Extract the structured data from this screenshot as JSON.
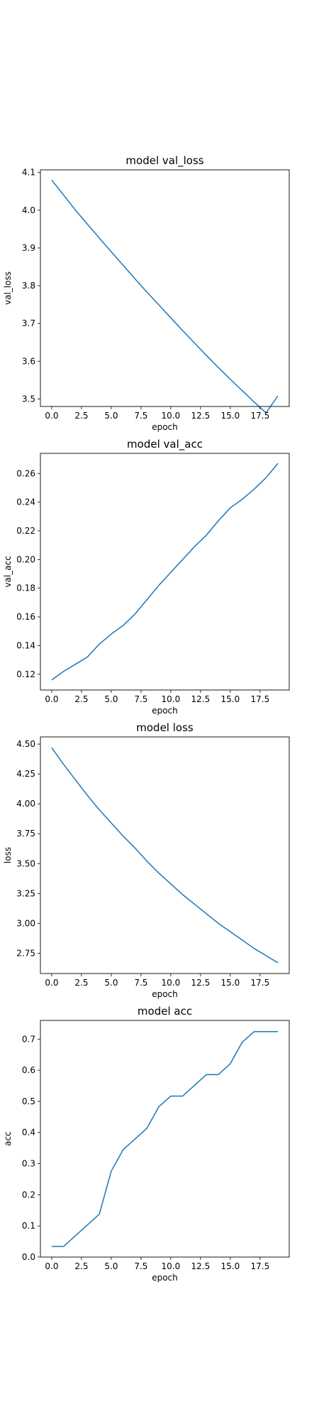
{
  "chart_data": [
    {
      "type": "line",
      "title": "model val_loss",
      "xlabel": "epoch",
      "ylabel": "val_loss",
      "xlim": [
        -0.95,
        19.95
      ],
      "ylim": [
        3.48,
        4.107
      ],
      "xticks": [
        0.0,
        2.5,
        5.0,
        7.5,
        10.0,
        12.5,
        15.0,
        17.5
      ],
      "xtick_labels": [
        "0.0",
        "2.5",
        "5.0",
        "7.5",
        "10.0",
        "12.5",
        "15.0",
        "17.5"
      ],
      "yticks": [
        3.5,
        3.6,
        3.7,
        3.8,
        3.9,
        4.0,
        4.1
      ],
      "ytick_labels": [
        "3.5",
        "3.6",
        "3.7",
        "3.8",
        "3.9",
        "4.0",
        "4.1"
      ],
      "color": "#1f77b4",
      "x": [
        0,
        1,
        2,
        3,
        4,
        5,
        6,
        7,
        8,
        9,
        10,
        11,
        12,
        13,
        14,
        15,
        16,
        17,
        18,
        19
      ],
      "values": [
        4.08,
        4.04,
        4.0,
        3.963,
        3.926,
        3.89,
        3.854,
        3.818,
        3.783,
        3.749,
        3.715,
        3.681,
        3.648,
        3.615,
        3.583,
        3.552,
        3.522,
        3.492,
        3.463,
        3.508
      ]
    },
    {
      "type": "line",
      "title": "model val_acc",
      "xlabel": "epoch",
      "ylabel": "val_acc",
      "xlim": [
        -0.95,
        19.95
      ],
      "ylim": [
        0.109,
        0.274
      ],
      "xticks": [
        0.0,
        2.5,
        5.0,
        7.5,
        10.0,
        12.5,
        15.0,
        17.5
      ],
      "xtick_labels": [
        "0.0",
        "2.5",
        "5.0",
        "7.5",
        "10.0",
        "12.5",
        "15.0",
        "17.5"
      ],
      "yticks": [
        0.12,
        0.14,
        0.16,
        0.18,
        0.2,
        0.22,
        0.24,
        0.26
      ],
      "ytick_labels": [
        "0.12",
        "0.14",
        "0.16",
        "0.18",
        "0.20",
        "0.22",
        "0.24",
        "0.26"
      ],
      "color": "#1f77b4",
      "x": [
        0,
        1,
        2,
        3,
        4,
        5,
        6,
        7,
        8,
        9,
        10,
        11,
        12,
        13,
        14,
        15,
        16,
        17,
        18,
        19
      ],
      "values": [
        0.116,
        0.122,
        0.127,
        0.132,
        0.141,
        0.148,
        0.154,
        0.162,
        0.172,
        0.182,
        0.191,
        0.2,
        0.209,
        0.217,
        0.227,
        0.236,
        0.242,
        0.249,
        0.257,
        0.267
      ]
    },
    {
      "type": "line",
      "title": "model loss",
      "xlabel": "epoch",
      "ylabel": "loss",
      "xlim": [
        -0.95,
        19.95
      ],
      "ylim": [
        2.58,
        4.56
      ],
      "xticks": [
        0.0,
        2.5,
        5.0,
        7.5,
        10.0,
        12.5,
        15.0,
        17.5
      ],
      "xtick_labels": [
        "0.0",
        "2.5",
        "5.0",
        "7.5",
        "10.0",
        "12.5",
        "15.0",
        "17.5"
      ],
      "yticks": [
        2.75,
        3.0,
        3.25,
        3.5,
        3.75,
        4.0,
        4.25,
        4.5
      ],
      "ytick_labels": [
        "2.75",
        "3.00",
        "3.25",
        "3.50",
        "3.75",
        "4.00",
        "4.25",
        "4.50"
      ],
      "color": "#1f77b4",
      "x": [
        0,
        1,
        2,
        3,
        4,
        5,
        6,
        7,
        8,
        9,
        10,
        11,
        12,
        13,
        14,
        15,
        16,
        17,
        18,
        19
      ],
      "values": [
        4.47,
        4.33,
        4.2,
        4.07,
        3.95,
        3.84,
        3.73,
        3.63,
        3.52,
        3.42,
        3.33,
        3.24,
        3.16,
        3.08,
        3.0,
        2.93,
        2.86,
        2.79,
        2.73,
        2.67
      ]
    },
    {
      "type": "line",
      "title": "model acc",
      "xlabel": "epoch",
      "ylabel": "acc",
      "xlim": [
        -0.95,
        19.95
      ],
      "ylim": [
        0.0,
        0.76
      ],
      "xticks": [
        0.0,
        2.5,
        5.0,
        7.5,
        10.0,
        12.5,
        15.0,
        17.5
      ],
      "xtick_labels": [
        "0.0",
        "2.5",
        "5.0",
        "7.5",
        "10.0",
        "12.5",
        "15.0",
        "17.5"
      ],
      "yticks": [
        0.0,
        0.1,
        0.2,
        0.3,
        0.4,
        0.5,
        0.6,
        0.7
      ],
      "ytick_labels": [
        "0.0",
        "0.1",
        "0.2",
        "0.3",
        "0.4",
        "0.5",
        "0.6",
        "0.7"
      ],
      "color": "#1f77b4",
      "x": [
        0,
        1,
        2,
        3,
        4,
        5,
        6,
        7,
        8,
        9,
        10,
        11,
        12,
        13,
        14,
        15,
        16,
        17,
        18,
        19
      ],
      "values": [
        0.034,
        0.034,
        0.069,
        0.103,
        0.138,
        0.276,
        0.345,
        0.379,
        0.414,
        0.483,
        0.517,
        0.517,
        0.552,
        0.586,
        0.586,
        0.621,
        0.69,
        0.724,
        0.724,
        0.724
      ]
    }
  ]
}
